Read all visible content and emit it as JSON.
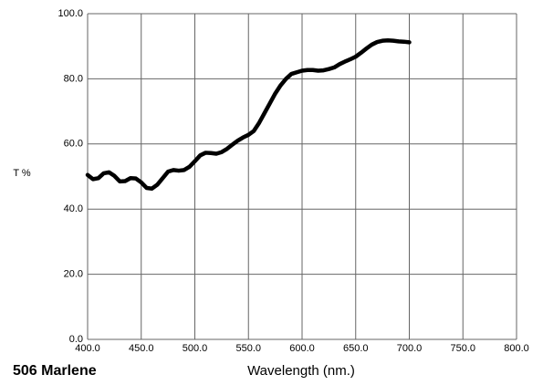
{
  "chart_data": {
    "type": "line",
    "title": "506 Marlene",
    "x_label": "Wavelength (nm.)",
    "y_label": "T %",
    "x": [
      400,
      405,
      410,
      415,
      420,
      425,
      430,
      435,
      440,
      445,
      450,
      455,
      460,
      465,
      470,
      475,
      480,
      485,
      490,
      495,
      500,
      505,
      510,
      515,
      520,
      525,
      530,
      535,
      540,
      545,
      550,
      555,
      560,
      565,
      570,
      575,
      580,
      585,
      590,
      595,
      600,
      605,
      610,
      615,
      620,
      625,
      630,
      635,
      640,
      645,
      650,
      655,
      660,
      665,
      670,
      675,
      680,
      685,
      690,
      695,
      700
    ],
    "series": [
      {
        "name": "T %",
        "color": "#000000",
        "values": [
          50.5,
          49.2,
          49.5,
          51,
          51.3,
          50.2,
          48.5,
          48.6,
          49.5,
          49.4,
          48.2,
          46.5,
          46.3,
          47.5,
          49.5,
          51.5,
          52,
          51.8,
          52,
          53,
          54.7,
          56.5,
          57.3,
          57.2,
          57,
          57.5,
          58.5,
          59.8,
          61,
          62,
          62.8,
          64,
          66.5,
          69.5,
          72.5,
          75.5,
          78,
          80,
          81.5,
          82,
          82.5,
          82.7,
          82.7,
          82.5,
          82.6,
          83,
          83.5,
          84.5,
          85.3,
          86,
          86.8,
          88,
          89.3,
          90.5,
          91.3,
          91.7,
          91.8,
          91.7,
          91.5,
          91.4,
          91.2
        ]
      }
    ],
    "xlim": [
      400,
      800
    ],
    "ylim": [
      0,
      100
    ],
    "xticks": [
      {
        "value": 400,
        "label": "400.0"
      },
      {
        "value": 450,
        "label": "450.0"
      },
      {
        "value": 500,
        "label": "500.0"
      },
      {
        "value": 550,
        "label": "550.0"
      },
      {
        "value": 600,
        "label": "600.0"
      },
      {
        "value": 650,
        "label": "650.0"
      },
      {
        "value": 700,
        "label": "700.0"
      },
      {
        "value": 750,
        "label": "750.0"
      },
      {
        "value": 800,
        "label": "800.0"
      }
    ],
    "yticks": [
      {
        "value": 0,
        "label": "0.0"
      },
      {
        "value": 20,
        "label": "20.0"
      },
      {
        "value": 40,
        "label": "40.0"
      },
      {
        "value": 60,
        "label": "60.0"
      },
      {
        "value": 80,
        "label": "80.0"
      },
      {
        "value": 100,
        "label": "100.0"
      }
    ],
    "grid": true
  }
}
